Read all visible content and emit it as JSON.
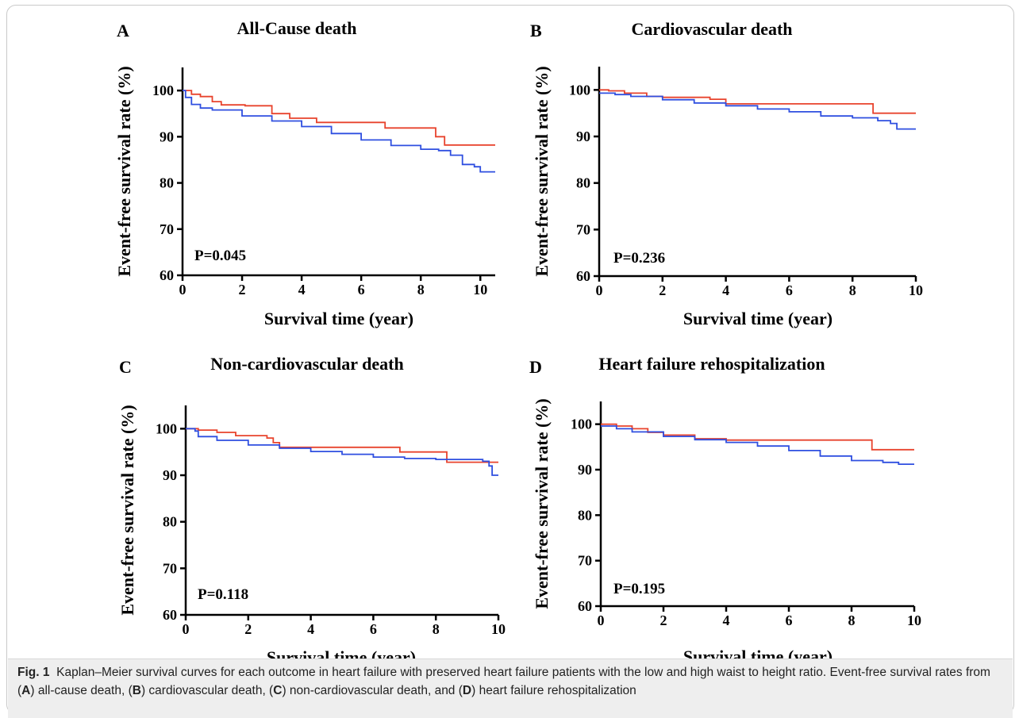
{
  "figure": {
    "caption": {
      "label": "Fig. 1",
      "part1": "Kaplan–Meier survival curves for each outcome in heart failure with preserved heart failure patients with the low and high waist to height ratio. Event-free survival rates from (",
      "partA": "A",
      "part2": ") all-cause death, (",
      "partB": "B",
      "part3": ") cardiovascular death, (",
      "partC": "C",
      "part4": ") non-cardiovascular death, and (",
      "partD": "D",
      "part5": ") heart failure rehospitalization"
    },
    "colors": {
      "red": "#e8432d",
      "blue": "#2f4fe0"
    }
  },
  "chart_data": [
    {
      "panel": "A",
      "type": "line",
      "title": "All-Cause death",
      "xlabel": "Survival time (year)",
      "ylabel": "Event-free survival rate (%)",
      "xlim": [
        0,
        10.5
      ],
      "ylim": [
        60,
        105
      ],
      "xticks": [
        0,
        2,
        4,
        6,
        8,
        10
      ],
      "yticks": [
        60,
        70,
        80,
        90,
        100
      ],
      "annotation": "P=0.045",
      "series": [
        {
          "color": "#e8432d",
          "x": [
            0,
            0.3,
            0.6,
            1.0,
            1.3,
            2.1,
            3.0,
            3.6,
            4.5,
            6.8,
            8.5,
            8.8,
            10.5
          ],
          "y": [
            100,
            99.2,
            98.7,
            97.6,
            96.9,
            96.7,
            95.0,
            94.0,
            93.1,
            91.9,
            90.0,
            88.2,
            88.2
          ]
        },
        {
          "color": "#2f4fe0",
          "x": [
            0,
            0.1,
            0.3,
            0.6,
            1.0,
            2.0,
            3.0,
            4.0,
            5.0,
            6.0,
            7.0,
            8.0,
            8.6,
            9.0,
            9.4,
            9.8,
            10.0,
            10.5
          ],
          "y": [
            100,
            98.5,
            97.0,
            96.2,
            95.8,
            94.5,
            93.4,
            92.2,
            90.7,
            89.3,
            88.1,
            87.3,
            87.0,
            86.0,
            84.0,
            83.5,
            82.4,
            82.4
          ]
        }
      ]
    },
    {
      "panel": "B",
      "type": "line",
      "title": "Cardiovascular death",
      "xlabel": "Survival time (year)",
      "ylabel": "Event-free survival rate (%)",
      "xlim": [
        0,
        10
      ],
      "ylim": [
        60,
        105
      ],
      "xticks": [
        0,
        2,
        4,
        6,
        8,
        10
      ],
      "yticks": [
        60,
        70,
        80,
        90,
        100
      ],
      "annotation": "P=0.236",
      "series": [
        {
          "color": "#e8432d",
          "x": [
            0,
            0.3,
            0.8,
            1.5,
            2.0,
            3.5,
            4.0,
            8.6,
            8.65,
            10
          ],
          "y": [
            100,
            99.8,
            99.3,
            98.6,
            98.4,
            98.0,
            97.0,
            97.0,
            95.0,
            95.0
          ]
        },
        {
          "color": "#2f4fe0",
          "x": [
            0,
            0.5,
            1.0,
            2.0,
            3.0,
            4.0,
            5.0,
            6.0,
            7.0,
            8.0,
            8.8,
            9.2,
            9.4,
            10
          ],
          "y": [
            99.3,
            99.0,
            98.6,
            97.9,
            97.2,
            96.6,
            95.9,
            95.3,
            94.4,
            94.0,
            93.4,
            92.8,
            91.6,
            91.6
          ]
        }
      ]
    },
    {
      "panel": "C",
      "type": "line",
      "title": "Non-cardiovascular death",
      "xlabel": "Survival time (year)",
      "ylabel": "Event-free survival rate (%)",
      "xlim": [
        0,
        10
      ],
      "ylim": [
        60,
        105
      ],
      "xticks": [
        0,
        2,
        4,
        6,
        8,
        10
      ],
      "yticks": [
        60,
        70,
        80,
        90,
        100
      ],
      "annotation": "P=0.118",
      "series": [
        {
          "color": "#e8432d",
          "x": [
            0,
            0.4,
            1.0,
            1.6,
            2.6,
            2.8,
            3.0,
            6.8,
            6.85,
            8.3,
            8.35,
            10
          ],
          "y": [
            100,
            99.7,
            99.2,
            98.5,
            98.0,
            97.0,
            96.0,
            96.0,
            95.0,
            95.0,
            92.8,
            92.8
          ]
        },
        {
          "color": "#2f4fe0",
          "x": [
            0,
            0.3,
            0.4,
            1.0,
            2.0,
            3.0,
            4.0,
            5.0,
            6.0,
            7.0,
            8.0,
            9.5,
            9.7,
            9.8,
            10
          ],
          "y": [
            100,
            99.5,
            98.3,
            97.5,
            96.5,
            95.8,
            95.1,
            94.5,
            93.9,
            93.6,
            93.4,
            93.0,
            92.0,
            90.0,
            90.0
          ]
        }
      ]
    },
    {
      "panel": "D",
      "type": "line",
      "title": "Heart failure rehospitalization",
      "xlabel": "Survival time (year)",
      "ylabel": "Event-free survival rate (%)",
      "xlim": [
        0,
        10
      ],
      "ylim": [
        60,
        105
      ],
      "xticks": [
        0,
        2,
        4,
        6,
        8,
        10
      ],
      "yticks": [
        60,
        70,
        80,
        90,
        100
      ],
      "annotation": "P=0.195",
      "series": [
        {
          "color": "#e8432d",
          "x": [
            0,
            0.5,
            1.0,
            1.5,
            2.0,
            3.0,
            4.0,
            8.6,
            8.65,
            10
          ],
          "y": [
            100,
            99.6,
            99.0,
            98.2,
            97.6,
            96.8,
            96.5,
            96.5,
            94.4,
            94.4
          ]
        },
        {
          "color": "#2f4fe0",
          "x": [
            0,
            0.5,
            1.0,
            2.0,
            3.0,
            4.0,
            5.0,
            6.0,
            7.0,
            8.0,
            9.0,
            9.5,
            10
          ],
          "y": [
            99.6,
            99.0,
            98.3,
            97.3,
            96.6,
            96.0,
            95.2,
            94.2,
            93.0,
            92.0,
            91.6,
            91.2,
            91.2
          ]
        }
      ]
    }
  ]
}
